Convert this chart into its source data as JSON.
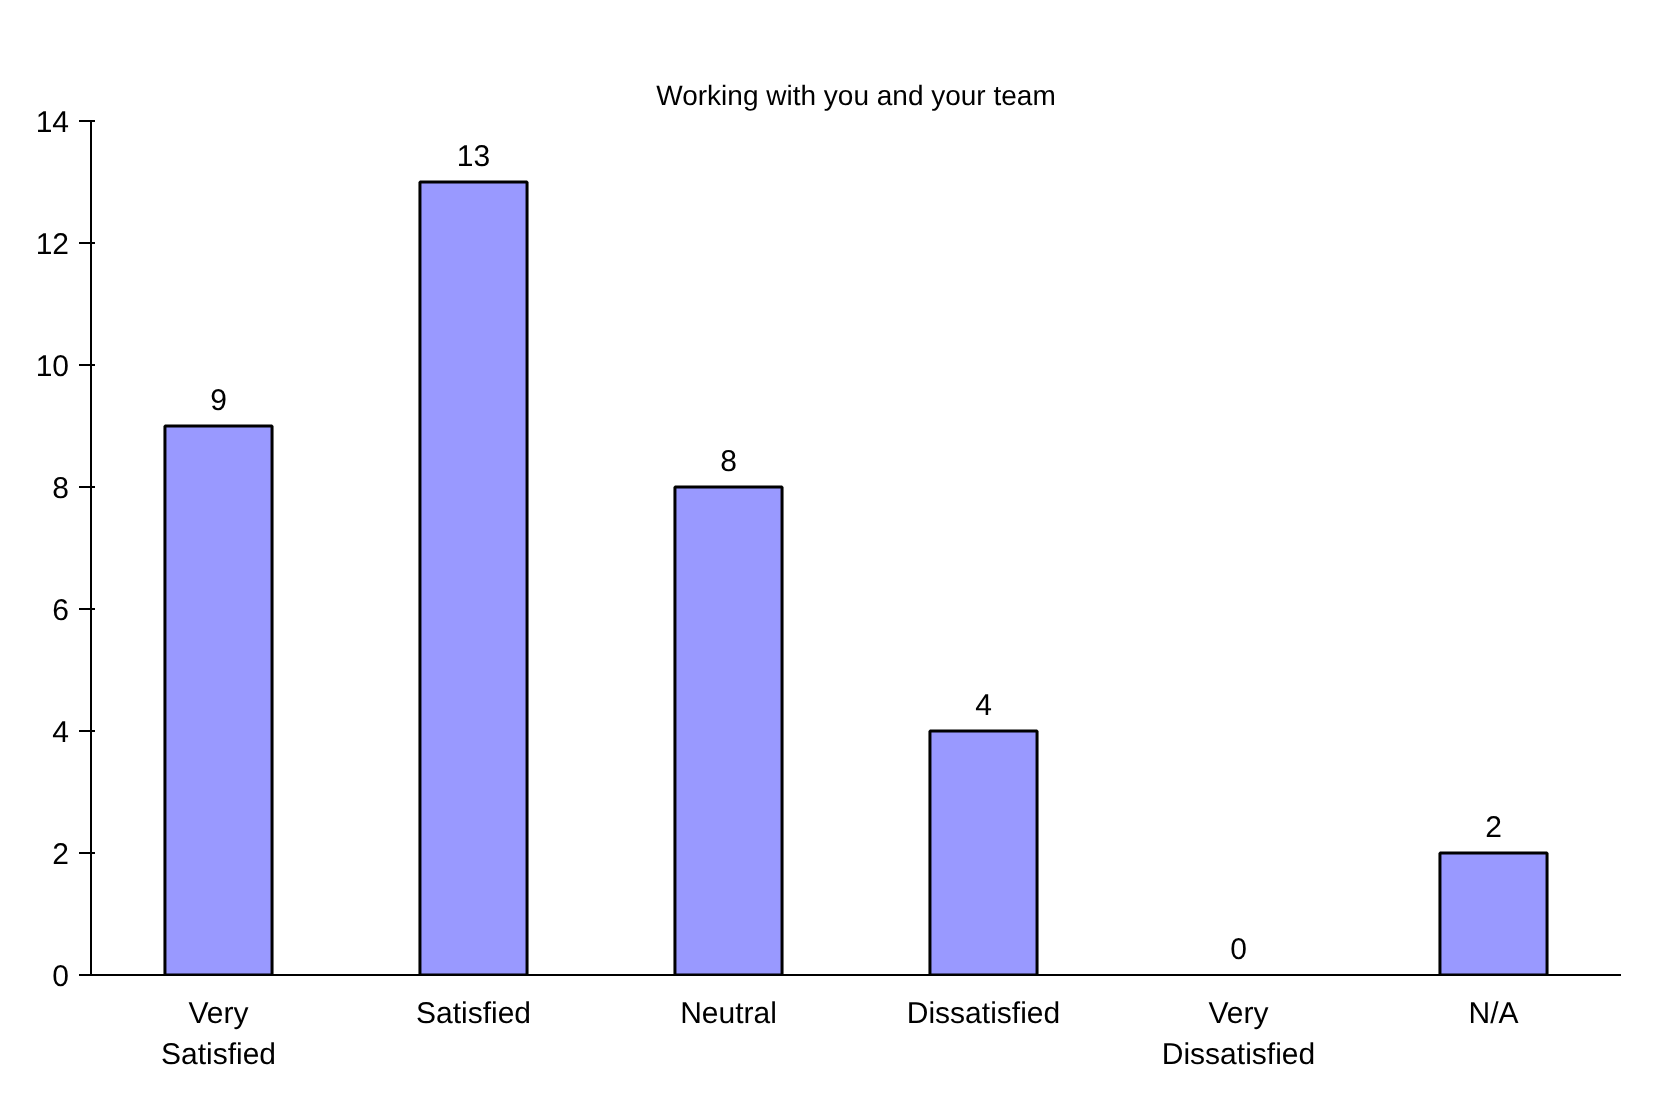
{
  "chart_data": {
    "type": "bar",
    "title": "Working with you and your team",
    "categories": [
      "Very Satisfied",
      "Satisfied",
      "Neutral",
      "Dissatisfied",
      "Very Dissatisfied",
      "N/A"
    ],
    "values": [
      9,
      13,
      8,
      4,
      0,
      2
    ],
    "color": "#9999ff",
    "ylim": [
      0,
      14
    ],
    "yticks": [
      0,
      2,
      4,
      6,
      8,
      10,
      12,
      14
    ],
    "grid": false,
    "data_labels": true
  }
}
